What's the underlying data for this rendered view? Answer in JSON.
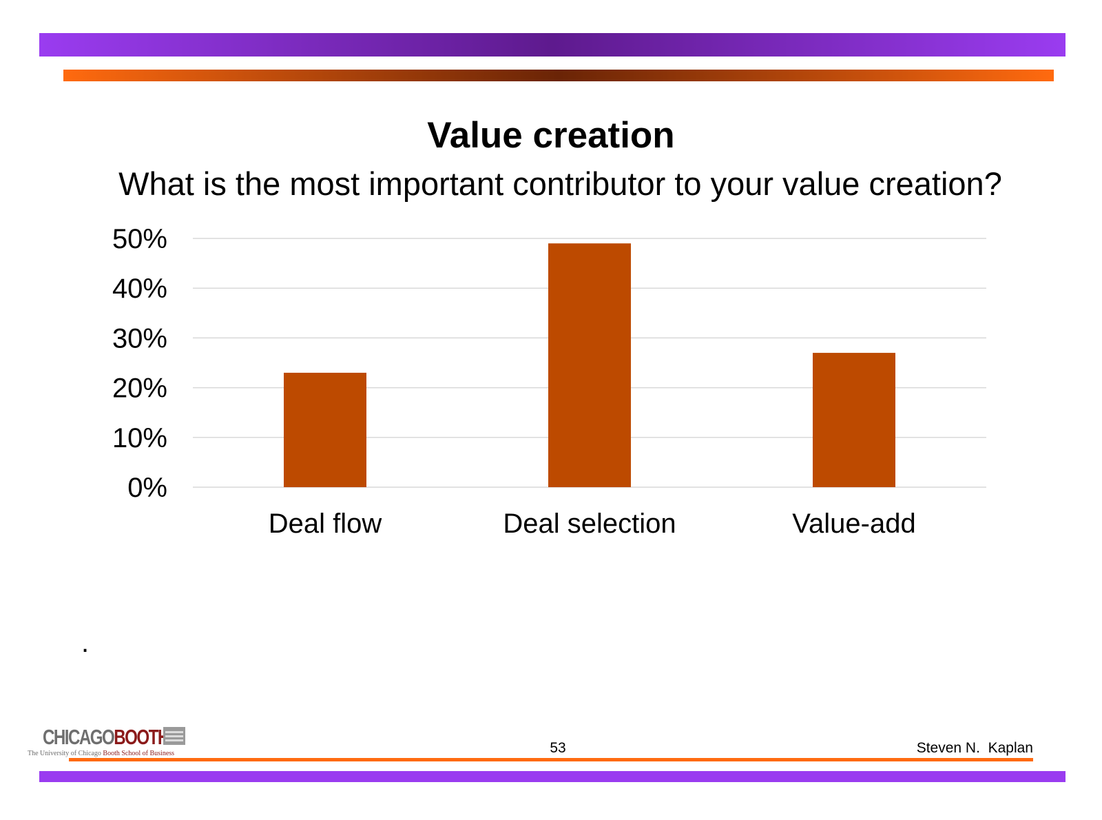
{
  "slide": {
    "title": "Value creation",
    "subtitle": "What is the most important contributor to your value creation?",
    "bullet": "."
  },
  "footer": {
    "logo_main_1": "CHICAGO",
    "logo_main_2": "BOOTH",
    "logo_sub_1": "The University of Chicago ",
    "logo_sub_2": "Booth School of Business",
    "page_number": "53",
    "author": "Steven N.  Kaplan"
  },
  "colors": {
    "bar": "#bd4a00",
    "grid": "#d9d9d9",
    "purple_band": "#9a3cf0",
    "orange_band": "#ff6a0f"
  },
  "chart_data": {
    "type": "bar",
    "title": "",
    "xlabel": "",
    "ylabel": "",
    "categories": [
      "Deal flow",
      "Deal selection",
      "Value-add"
    ],
    "values": [
      0.23,
      0.49,
      0.27
    ],
    "ylim": [
      0,
      0.5
    ],
    "yticks": [
      0,
      0.1,
      0.2,
      0.3,
      0.4,
      0.5
    ],
    "ytick_labels": [
      "0%",
      "10%",
      "20%",
      "30%",
      "40%",
      "50%"
    ],
    "grid": true,
    "legend": "none"
  }
}
